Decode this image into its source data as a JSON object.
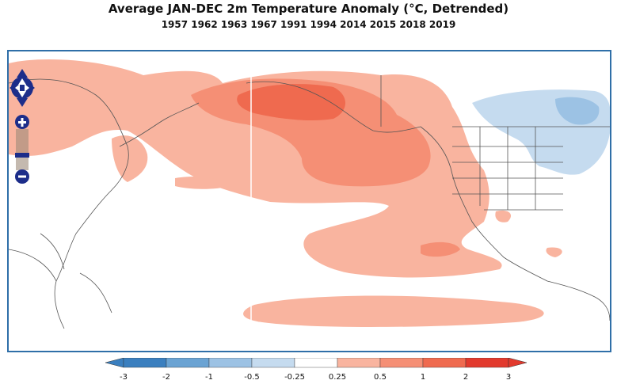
{
  "title": "Average JAN-DEC 2m Temperature Anomaly (°C, Detrended)",
  "subtitle": "1957 1962 1963 1967 1991 1994 2014 2015 2018 2019",
  "map": {
    "controls": [
      "pan-up",
      "pan-left",
      "pan-right",
      "pan-down",
      "zoom-in",
      "zoom-out"
    ]
  },
  "legend": {
    "ticks": [
      "-3",
      "-2",
      "-1",
      "-0.5",
      "-0.25",
      "0.25",
      "0.5",
      "1",
      "2",
      "3"
    ],
    "colors": [
      "#3a7fbf",
      "#6aa3d3",
      "#9cc2e4",
      "#c5dbef",
      "#ffffff",
      "#f9b49f",
      "#f58f75",
      "#ef6a4f",
      "#e2392d"
    ]
  }
}
